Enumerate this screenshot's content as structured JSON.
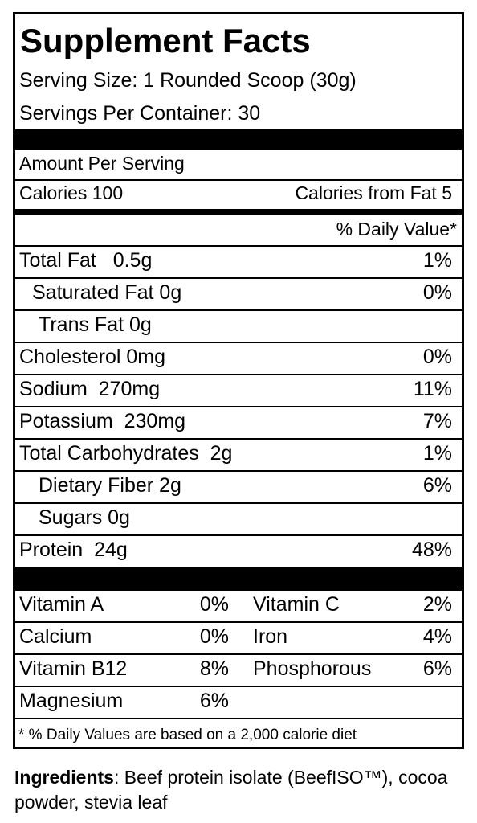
{
  "header": {
    "title": "Supplement Facts",
    "serving_size": "Serving Size: 1 Rounded Scoop (30g)",
    "servings_per_container": "Servings Per Container: 30"
  },
  "calories": {
    "amount_per_serving": "Amount Per Serving",
    "calories": "Calories 100",
    "calories_from_fat": "Calories from Fat 5"
  },
  "daily_value_header": "% Daily Value*",
  "nutrients": [
    [
      "Total Fat   0.5g",
      "1%"
    ],
    [
      "Saturated Fat 0g",
      "0%"
    ],
    [
      "Trans Fat 0g"
    ],
    [
      "Cholesterol 0mg",
      "0%"
    ],
    [
      "Sodium  270mg",
      "11%"
    ],
    [
      "Potassium  230mg",
      "7%"
    ],
    [
      "Total Carbohydrates  2g",
      "1%"
    ],
    [
      "Dietary Fiber 2g",
      "6%"
    ],
    [
      "Sugars 0g"
    ],
    [
      "Protein  24g",
      "48%"
    ]
  ],
  "vitamins": [
    [
      "Vitamin A",
      "0%",
      "Vitamin C",
      "2%"
    ],
    [
      "Calcium",
      "0%",
      "Iron",
      "4%"
    ],
    [
      "Vitamin B12",
      "8%",
      "Phosphorous",
      "6%"
    ],
    [
      "Magnesium",
      "6%"
    ]
  ],
  "footnote": "* % Daily Values are based on a 2,000 calorie diet",
  "ingredients": {
    "label": "Ingredients",
    "text": ": Beef protein isolate (BeefISO™), cocoa powder, stevia leaf"
  }
}
